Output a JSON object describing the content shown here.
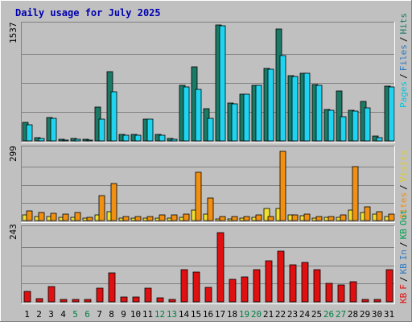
{
  "title": "Daily usage for July 2025",
  "colors": {
    "background": "#c0c0c0",
    "plot_background": "#c0c0c0",
    "gridline": "#808080",
    "title": "#0000b0",
    "hits": "#1b7a66",
    "files": "#1fd4f0",
    "pages": "#00d4ee",
    "visits": "#f0e030",
    "sites": "#f29012",
    "kb_out": "#00a050",
    "kb_in": "#2f7ac0",
    "kb_f": "#e01010",
    "weekend_label": "#008040",
    "weekday_label": "#000000"
  },
  "chart_data": [
    {
      "type": "bar",
      "panel": "hits-files-pages",
      "ymax_label": "1537",
      "ylim": [
        0,
        1537
      ],
      "grid": true,
      "legend": [
        "Pages",
        "/",
        "Files",
        "/",
        "Hits"
      ],
      "categories": [
        "1",
        "2",
        "3",
        "4",
        "5",
        "6",
        "7",
        "8",
        "9",
        "10",
        "11",
        "12",
        "13",
        "14",
        "15",
        "16",
        "17",
        "18",
        "19",
        "20",
        "21",
        "22",
        "23",
        "24",
        "25",
        "26",
        "27",
        "28",
        "29",
        "30",
        "31"
      ],
      "weekend_days": [
        "5",
        "6",
        "12",
        "13",
        "19",
        "20",
        "26",
        "27"
      ],
      "series": [
        {
          "name": "Hits",
          "color": "#1b7a66",
          "values": [
            250,
            40,
            310,
            20,
            30,
            20,
            450,
            920,
            90,
            90,
            290,
            90,
            30,
            740,
            980,
            430,
            1537,
            500,
            620,
            740,
            960,
            1480,
            860,
            900,
            750,
            420,
            660,
            410,
            520,
            60,
            730
          ]
        },
        {
          "name": "Files",
          "color": "#1fd4f0",
          "values": [
            210,
            30,
            300,
            15,
            25,
            15,
            290,
            650,
            80,
            80,
            290,
            70,
            25,
            720,
            680,
            300,
            1530,
            490,
            620,
            740,
            950,
            1130,
            850,
            900,
            740,
            410,
            320,
            390,
            440,
            40,
            720
          ]
        }
      ]
    },
    {
      "type": "bar",
      "panel": "visits-sites",
      "ymax_label": "299",
      "ylim": [
        0,
        299
      ],
      "grid": true,
      "legend": [
        "Sites",
        "/",
        "Visits"
      ],
      "categories": [
        "1",
        "2",
        "3",
        "4",
        "5",
        "6",
        "7",
        "8",
        "9",
        "10",
        "11",
        "12",
        "13",
        "14",
        "15",
        "16",
        "17",
        "18",
        "19",
        "20",
        "21",
        "22",
        "23",
        "24",
        "25",
        "26",
        "27",
        "28",
        "29",
        "30",
        "31"
      ],
      "series": [
        {
          "name": "Visits",
          "color": "#f0e030",
          "values": [
            22,
            18,
            16,
            14,
            14,
            10,
            22,
            36,
            10,
            10,
            10,
            10,
            10,
            14,
            44,
            28,
            8,
            8,
            10,
            12,
            50,
            50,
            24,
            20,
            10,
            12,
            14,
            42,
            32,
            26,
            16
          ]
        },
        {
          "name": "Sites",
          "color": "#f29012",
          "values": [
            40,
            34,
            30,
            26,
            32,
            14,
            105,
            155,
            16,
            18,
            18,
            22,
            24,
            26,
            200,
            93,
            18,
            16,
            18,
            24,
            18,
            290,
            24,
            28,
            16,
            18,
            24,
            224,
            56,
            38,
            26
          ]
        }
      ]
    },
    {
      "type": "bar",
      "panel": "kb",
      "ymax_label": "243",
      "ylim": [
        0,
        243
      ],
      "grid": true,
      "legend": [
        "KB",
        "F",
        "/",
        "KB",
        "In",
        "/",
        "KB",
        "Out"
      ],
      "categories": [
        "1",
        "2",
        "3",
        "4",
        "5",
        "6",
        "7",
        "8",
        "9",
        "10",
        "11",
        "12",
        "13",
        "14",
        "15",
        "16",
        "17",
        "18",
        "19",
        "20",
        "21",
        "22",
        "23",
        "24",
        "25",
        "26",
        "27",
        "28",
        "29",
        "30",
        "31"
      ],
      "series": [
        {
          "name": "KB F",
          "color": "#e01010",
          "values": [
            36,
            10,
            50,
            8,
            8,
            8,
            46,
            95,
            17,
            17,
            45,
            13,
            8,
            108,
            100,
            49,
            230,
            75,
            82,
            107,
            137,
            168,
            122,
            131,
            108,
            62,
            56,
            66,
            8,
            8,
            107
          ]
        }
      ]
    }
  ]
}
